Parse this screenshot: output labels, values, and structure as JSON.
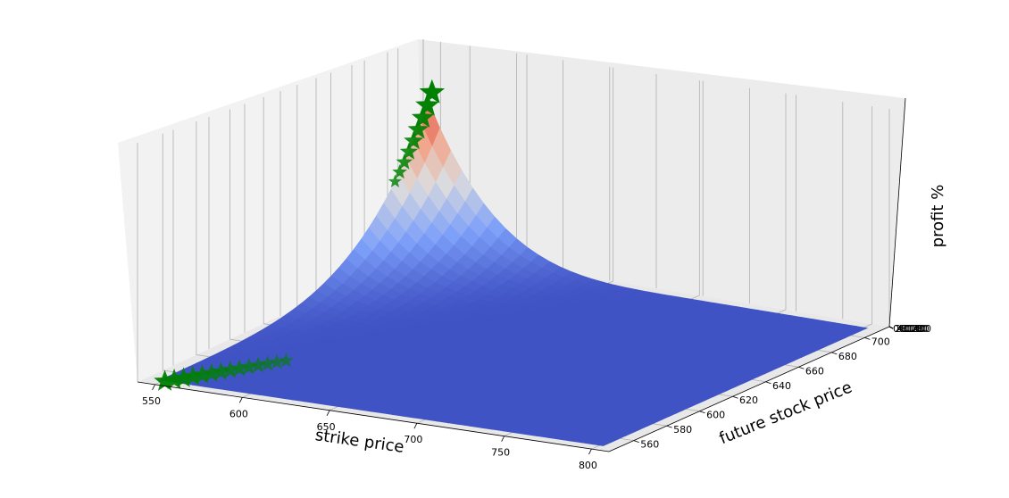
{
  "chart_data": {
    "type": "surface",
    "xlabel": "strike price",
    "ylabel": "future stock price",
    "zlabel": "profit %",
    "x_ticks": [
      "550",
      "600",
      "650",
      "700",
      "750",
      "800"
    ],
    "y_ticks": [
      "560",
      "580",
      "600",
      "620",
      "640",
      "660",
      "680",
      "700"
    ],
    "z_ticks": [
      "0",
      "20",
      "40",
      "60",
      "80",
      "100",
      "120",
      "140",
      "160",
      "180",
      "200"
    ],
    "xlim": [
      540,
      810
    ],
    "ylim": [
      545,
      715
    ],
    "colormap": "coolwarm",
    "marker": {
      "shape": "star",
      "color": "#008000"
    },
    "grid": true
  }
}
